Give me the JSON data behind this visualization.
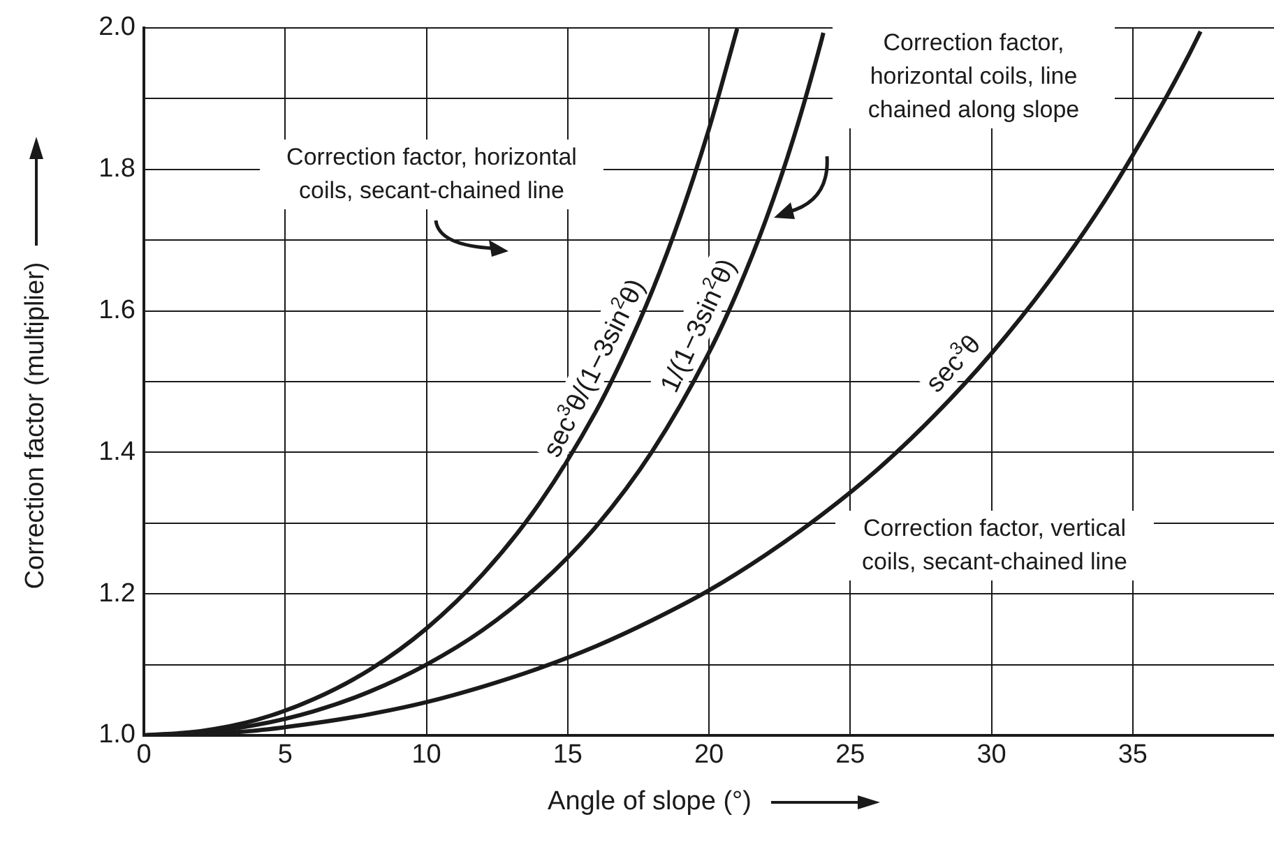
{
  "chart_data": {
    "type": "line",
    "xlabel": "Angle of slope (°)",
    "ylabel": "Correction factor (multiplier)",
    "xlim": [
      0,
      40
    ],
    "ylim": [
      1,
      2
    ],
    "xticks": [
      0,
      5,
      10,
      15,
      20,
      25,
      30,
      35
    ],
    "yticks": [
      {
        "value": 1,
        "label": "1.0"
      },
      {
        "value": 1.1,
        "label": null
      },
      {
        "value": 1.2,
        "label": "1.2"
      },
      {
        "value": 1.3,
        "label": null
      },
      {
        "value": 1.4,
        "label": "1.4"
      },
      {
        "value": 1.5,
        "label": null
      },
      {
        "value": 1.6,
        "label": "1.6"
      },
      {
        "value": 1.7,
        "label": null
      },
      {
        "value": 1.8,
        "label": "1.8"
      },
      {
        "value": 1.9,
        "label": null
      },
      {
        "value": 2,
        "label": "2.0"
      }
    ],
    "grid": true,
    "legend": false,
    "marker": "none",
    "line_style": "solid",
    "series": [
      {
        "name": "sec$^{3}$θ/(1−3sin$^{2}$θ)",
        "color": "#1a1a1a",
        "x": [
          0,
          2,
          4,
          6,
          8,
          10,
          12,
          14,
          16,
          17,
          18,
          19,
          20,
          21
        ],
        "values": [
          1,
          1.006,
          1.022,
          1.051,
          1.093,
          1.151,
          1.228,
          1.328,
          1.458,
          1.538,
          1.629,
          1.735,
          1.857,
          1.999
        ]
      },
      {
        "name": "1/(1−3sin$^{2}$θ)",
        "color": "#1a1a1a",
        "x": [
          0,
          2,
          4,
          6,
          8,
          10,
          12,
          14,
          16,
          18,
          20,
          21,
          22,
          23,
          24,
          24.05
        ],
        "values": [
          1,
          1.004,
          1.015,
          1.034,
          1.062,
          1.1,
          1.149,
          1.213,
          1.295,
          1.402,
          1.541,
          1.627,
          1.727,
          1.845,
          1.985,
          1.993
        ]
      },
      {
        "name": "sec$^{3}$θ",
        "color": "#1a1a1a",
        "x": [
          0,
          2,
          4,
          6,
          8,
          10,
          12,
          14,
          16,
          18,
          20,
          22,
          24,
          26,
          28,
          30,
          32,
          34,
          36,
          37,
          37.4
        ],
        "values": [
          1,
          1.002,
          1.007,
          1.017,
          1.03,
          1.047,
          1.069,
          1.095,
          1.126,
          1.163,
          1.205,
          1.255,
          1.312,
          1.377,
          1.453,
          1.54,
          1.64,
          1.755,
          1.889,
          1.963,
          1.995
        ]
      }
    ],
    "annotations": [
      "Correction factor, horizontal coils, secant-chained line",
      "Correction factor, horizontal coils, line chained along slope",
      "Correction factor, vertical coils, secant-chained line"
    ]
  }
}
